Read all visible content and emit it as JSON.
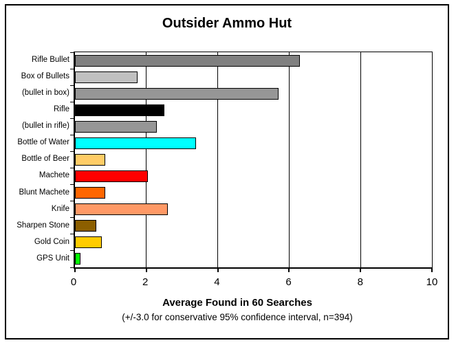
{
  "title": "Outsider Ammo Hut",
  "chart_data": {
    "type": "bar",
    "orientation": "horizontal",
    "title": "Outsider Ammo Hut",
    "categories": [
      "Rifle Bullet",
      "Box of Bullets",
      "(bullet in box)",
      "Rifle",
      "(bullet in rifle)",
      "Bottle of Water",
      "Bottle of Beer",
      "Machete",
      "Blunt Machete",
      "Knife",
      "Sharpen Stone",
      "Gold Coin",
      "GPS Unit"
    ],
    "values": [
      6.3,
      1.75,
      5.7,
      2.5,
      2.3,
      3.4,
      0.85,
      2.05,
      0.85,
      2.6,
      0.6,
      0.75,
      0.15
    ],
    "bar_colors": [
      "#808080",
      "#C0C0C0",
      "#969696",
      "#000000",
      "#969696",
      "#00FFFF",
      "#FFCC66",
      "#FF0000",
      "#FF6600",
      "#FF9966",
      "#8C5F00",
      "#FFCC00",
      "#00FF00"
    ],
    "xlabel": "Average Found in 60 Searches",
    "xlabel_note": "(+/-3.0 for conservative 95% confidence interval, n=394)",
    "xlim": [
      0,
      10
    ],
    "xticks": [
      0,
      2,
      4,
      6,
      8,
      10
    ],
    "gridlines_at": [
      2,
      4,
      6,
      8
    ],
    "legend": "none",
    "grid": "vertical gridlines at even ticks",
    "axis_color": "#000000",
    "plot_background": "#FFFFFF"
  }
}
